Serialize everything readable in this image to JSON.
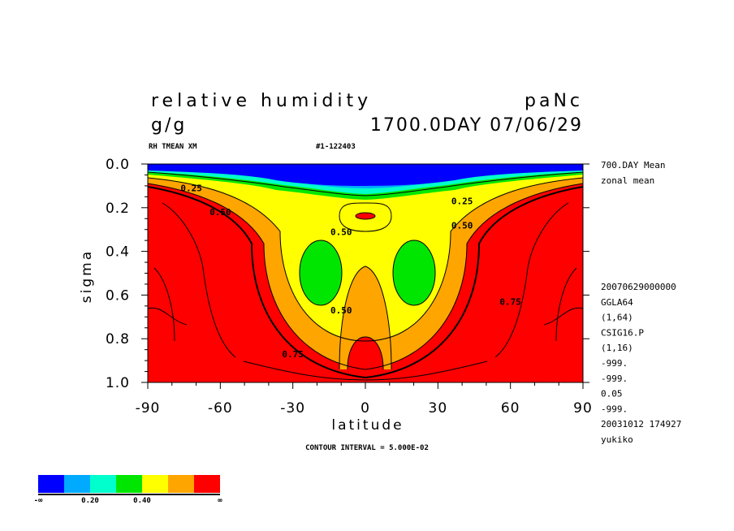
{
  "header": {
    "title_left": "relative humidity",
    "title_right": "paNc",
    "units": "g/g",
    "date_line": "1700.0DAY 07/06/29",
    "var_label": "RH TMEAN XM",
    "run_id": "#1-122403"
  },
  "right_info": {
    "top_lines": [
      "700.DAY Mean",
      "zonal mean"
    ],
    "meta_lines": [
      "20070629000000",
      "GGLA64",
      "(1,64)",
      "CSIG16.P",
      "(1,16)",
      "-999.",
      "-999.",
      "0.05",
      "-999.",
      "20031012 174927",
      "yukiko"
    ]
  },
  "footer": {
    "contour_interval": "CONTOUR INTERVAL = 5.000E-02"
  },
  "colorbar": {
    "colors": [
      "#0000ff",
      "#00aaff",
      "#00ffcc",
      "#00e600",
      "#ffff00",
      "#ffa500",
      "#ff0000"
    ],
    "labels": [
      "-∞",
      "0.20",
      "0.40",
      "∞"
    ]
  },
  "chart_data": {
    "type": "contour",
    "title": "relative humidity",
    "xlabel": "latitude",
    "ylabel": "sigma",
    "xlim": [
      -90,
      90
    ],
    "ylim": [
      1.0,
      0.0
    ],
    "x_ticks": [
      "-90",
      "-60",
      "-30",
      "0",
      "30",
      "60",
      "90"
    ],
    "y_ticks": [
      "0.0",
      "0.2",
      "0.4",
      "0.6",
      "0.8",
      "1.0"
    ],
    "contour_labels": [
      {
        "text": "0.25",
        "lat": -72,
        "sigma": 0.11
      },
      {
        "text": "0.25",
        "lat": 40,
        "sigma": 0.17
      },
      {
        "text": "0.50",
        "lat": -60,
        "sigma": 0.22
      },
      {
        "text": "0.50",
        "lat": -10,
        "sigma": 0.31
      },
      {
        "text": "0.50",
        "lat": 40,
        "sigma": 0.28
      },
      {
        "text": "0.50",
        "lat": -10,
        "sigma": 0.67
      },
      {
        "text": "0.75",
        "lat": 60,
        "sigma": 0.63
      },
      {
        "text": "0.75",
        "lat": -30,
        "sigma": 0.87
      }
    ],
    "levels": [
      {
        "range": "< 0.10",
        "color": "#0000ff"
      },
      {
        "range": "0.10-0.20",
        "color": "#00aaff"
      },
      {
        "range": "0.20-0.30",
        "color": "#00ffcc"
      },
      {
        "range": "0.30-0.40",
        "color": "#00e600"
      },
      {
        "range": "0.40-0.55",
        "color": "#ffff00"
      },
      {
        "range": "0.55-0.70",
        "color": "#ffa500"
      },
      {
        "range": "> 0.70",
        "color": "#ff0000"
      }
    ]
  }
}
